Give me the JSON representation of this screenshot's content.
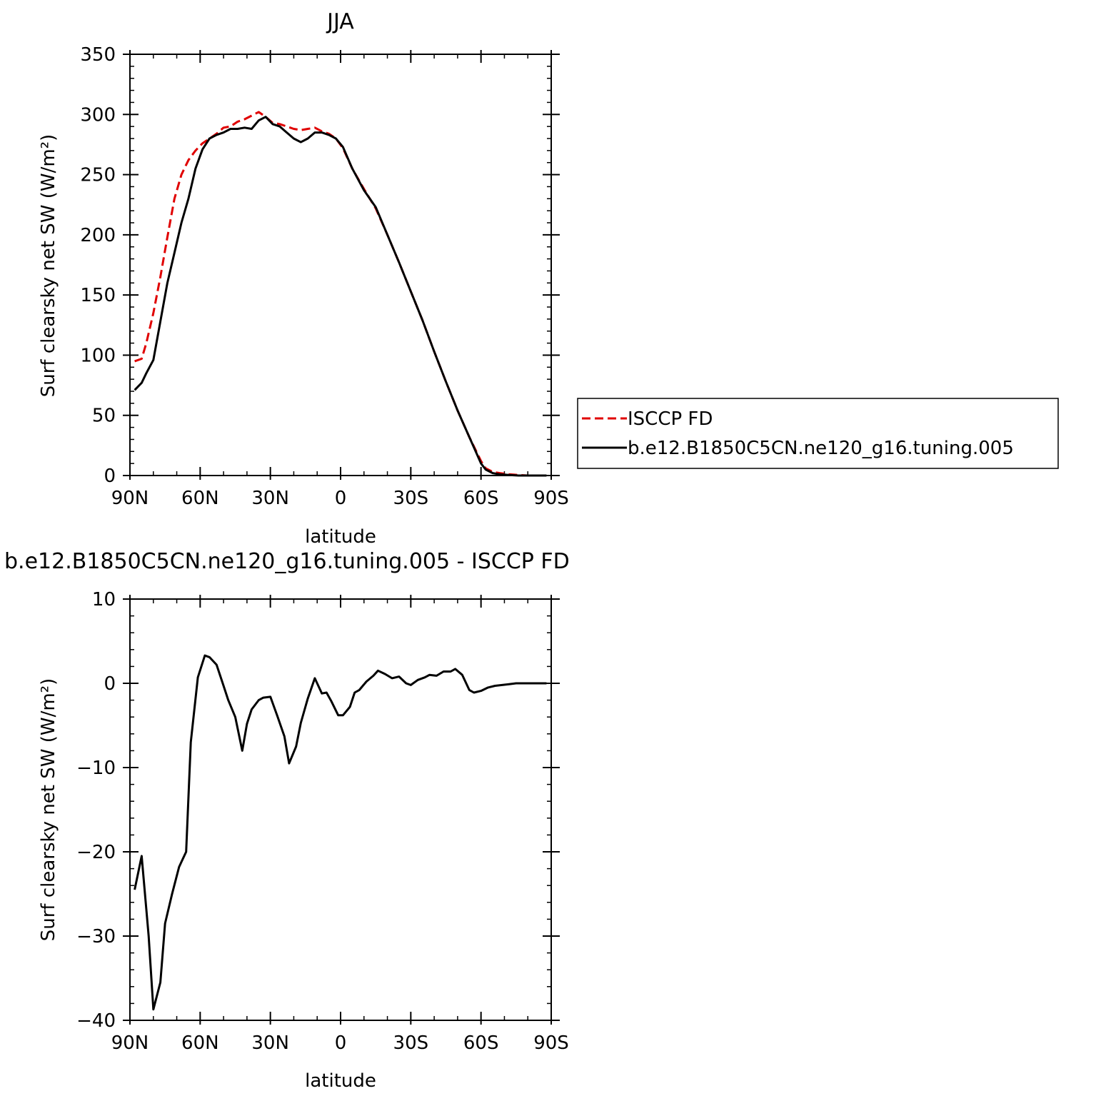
{
  "chart_data": [
    {
      "type": "line",
      "title": "JJA",
      "xlabel": "latitude",
      "ylabel": "Surf clearsky net SW (W/m²)",
      "xlim": [
        90,
        -90
      ],
      "ylim": [
        0,
        350
      ],
      "xticks": [
        {
          "value": 90,
          "label": "90N"
        },
        {
          "value": 60,
          "label": "60N"
        },
        {
          "value": 30,
          "label": "30N"
        },
        {
          "value": 0,
          "label": "0"
        },
        {
          "value": -30,
          "label": "30S"
        },
        {
          "value": -60,
          "label": "60S"
        },
        {
          "value": -90,
          "label": "90S"
        }
      ],
      "yticks": [
        0,
        50,
        100,
        150,
        200,
        250,
        300,
        350
      ],
      "legend": {
        "position": "right",
        "entries": [
          {
            "label": "ISCCP FD",
            "color": "#e00000",
            "dash": "dashed"
          },
          {
            "label": "b.e12.B1850C5CN.ne120_g16.tuning.005",
            "color": "#000000",
            "dash": "solid"
          }
        ]
      },
      "series": [
        {
          "name": "ISCCP FD",
          "color": "#e00000",
          "dash": "dashed",
          "x": [
            88,
            85,
            83,
            80,
            77,
            74,
            71,
            68,
            65,
            62,
            59,
            56,
            53,
            50,
            47,
            44,
            41,
            38,
            35,
            32,
            29,
            26,
            23,
            20,
            17,
            14,
            11,
            8,
            5,
            2,
            -1,
            -5,
            -10,
            -15,
            -20,
            -25,
            -30,
            -35,
            -40,
            -45,
            -50,
            -55,
            -60,
            -62,
            -65,
            -68,
            -72,
            -76,
            -80,
            -85,
            -88
          ],
          "values": [
            95,
            97,
            110,
            135,
            165,
            198,
            230,
            250,
            262,
            270,
            276,
            280,
            284,
            289,
            290,
            294,
            296,
            299,
            302,
            298,
            293,
            292,
            290,
            288,
            287,
            288,
            289,
            286,
            284,
            280,
            272,
            255,
            238,
            222,
            200,
            177,
            153,
            129,
            103,
            78,
            54,
            32,
            12,
            6,
            3,
            2,
            1,
            0.5,
            0,
            0,
            0
          ]
        },
        {
          "name": "b.e12.B1850C5CN.ne120_g16.tuning.005",
          "color": "#000000",
          "dash": "solid",
          "x": [
            88,
            85,
            83,
            80,
            77,
            74,
            71,
            68,
            65,
            62,
            59,
            56,
            53,
            50,
            47,
            44,
            41,
            38,
            35,
            32,
            29,
            26,
            23,
            20,
            17,
            14,
            11,
            8,
            5,
            2,
            -1,
            -5,
            -10,
            -15,
            -20,
            -25,
            -30,
            -35,
            -40,
            -45,
            -50,
            -55,
            -60,
            -62,
            -65,
            -68,
            -72,
            -76,
            -80,
            -85,
            -88
          ],
          "values": [
            71,
            77,
            85,
            96,
            128,
            160,
            185,
            210,
            230,
            255,
            271,
            280,
            283,
            285,
            288,
            288,
            289,
            288,
            295,
            298,
            292,
            290,
            285,
            280,
            277,
            280,
            285,
            285,
            283,
            280,
            273,
            255,
            237,
            223,
            200,
            177,
            153,
            129,
            103,
            78,
            54,
            32,
            10,
            5,
            2,
            1,
            0.5,
            0,
            0,
            0,
            0
          ]
        }
      ]
    },
    {
      "type": "line",
      "title": "b.e12.B1850C5CN.ne120_g16.tuning.005 - ISCCP FD",
      "xlabel": "latitude",
      "ylabel": "Surf clearsky net SW (W/m²)",
      "xlim": [
        90,
        -90
      ],
      "ylim": [
        -40,
        10
      ],
      "xticks": [
        {
          "value": 90,
          "label": "90N"
        },
        {
          "value": 60,
          "label": "60N"
        },
        {
          "value": 30,
          "label": "30N"
        },
        {
          "value": 0,
          "label": "0"
        },
        {
          "value": -30,
          "label": "30S"
        },
        {
          "value": -60,
          "label": "60S"
        },
        {
          "value": -90,
          "label": "90S"
        }
      ],
      "yticks": [
        10,
        0,
        -10,
        -20,
        -30,
        -40
      ],
      "series": [
        {
          "color": "#000000",
          "dash": "solid",
          "x": [
            88,
            85,
            82,
            80,
            77,
            75,
            72,
            69,
            66,
            64,
            61,
            58,
            56,
            53,
            50,
            48,
            45,
            42,
            40,
            38,
            35,
            33,
            30,
            27,
            24,
            22,
            19,
            17,
            14,
            11,
            8,
            6,
            4,
            1,
            -1,
            -4,
            -6,
            -8,
            -11,
            -14,
            -16,
            -19,
            -22,
            -25,
            -28,
            -30,
            -33,
            -36,
            -38,
            -41,
            -44,
            -47,
            -49,
            -52,
            -55,
            -57,
            -60,
            -63,
            -66,
            -69,
            -72,
            -75,
            -78,
            -81,
            -84,
            -88
          ],
          "values": [
            -24.5,
            -20.5,
            -30,
            -38.7,
            -35.5,
            -28.5,
            -25,
            -21.8,
            -20,
            -7,
            0.7,
            3.3,
            3.1,
            2.2,
            -0.3,
            -2,
            -4,
            -8,
            -4.8,
            -3.1,
            -2,
            -1.7,
            -1.6,
            -3.9,
            -6.3,
            -9.5,
            -7.5,
            -4.7,
            -1.8,
            0.6,
            -1.2,
            -1.1,
            -2.1,
            -3.8,
            -3.8,
            -2.8,
            -1.1,
            -0.8,
            0.2,
            0.9,
            1.5,
            1.1,
            0.6,
            0.8,
            0,
            -0.2,
            0.4,
            0.7,
            1,
            0.9,
            1.4,
            1.4,
            1.7,
            1,
            -0.8,
            -1.1,
            -0.9,
            -0.5,
            -0.3,
            -0.2,
            -0.1,
            0,
            0,
            0,
            0,
            0
          ]
        }
      ]
    }
  ]
}
